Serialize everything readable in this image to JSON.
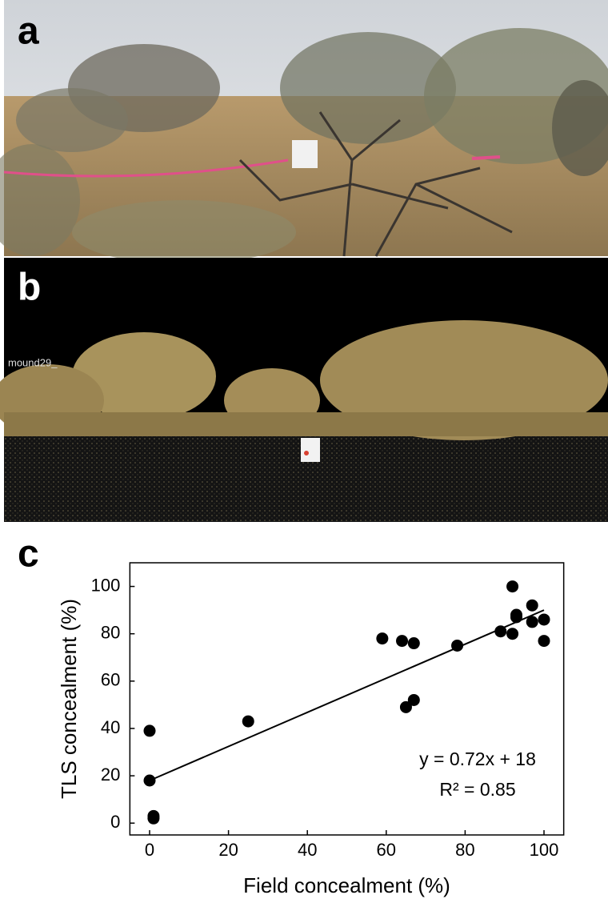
{
  "panel_labels": [
    "a",
    "b",
    "c"
  ],
  "photo_b_tag": "mound29_",
  "chart_data": {
    "type": "scatter",
    "x_label": "Field concealment (%)",
    "y_label": "TLS concealment (%)",
    "x": [
      0,
      0,
      1,
      1,
      25,
      59,
      64,
      67,
      65,
      67,
      78,
      89,
      92,
      92,
      93,
      93,
      97,
      97,
      100,
      100
    ],
    "values": [
      39,
      18,
      3,
      2,
      43,
      78,
      77,
      76,
      49,
      52,
      75,
      81,
      80,
      100,
      88,
      87,
      92,
      85,
      86,
      77
    ],
    "color": "#000000",
    "xlim": [
      -5,
      105
    ],
    "ylim": [
      -5,
      110
    ],
    "xticks": [
      0,
      20,
      40,
      60,
      80,
      100
    ],
    "yticks": [
      0,
      20,
      40,
      60,
      80,
      100
    ],
    "trendline": {
      "slope": 0.72,
      "intercept": 18,
      "label": "y = 0.72x + 18"
    },
    "r2_label": "R² = 0.85"
  }
}
